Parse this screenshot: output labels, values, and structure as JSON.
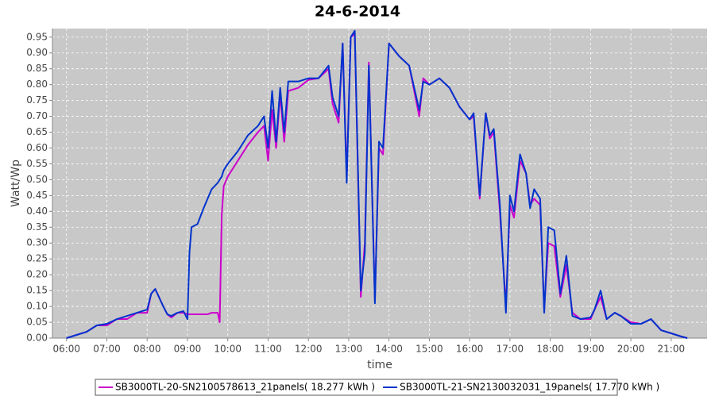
{
  "chart_data": {
    "type": "line",
    "title": "24-6-2014",
    "x_label": "time",
    "y_label": "Watt/Wp",
    "grid": true,
    "legend": "bottom",
    "xlim": [
      5.65,
      21.89
    ],
    "ylim": [
      0,
      0.977
    ],
    "xticks": [
      {
        "value": 6,
        "label": "06:00"
      },
      {
        "value": 7,
        "label": "07:00"
      },
      {
        "value": 8,
        "label": "08:00"
      },
      {
        "value": 9,
        "label": "09:00"
      },
      {
        "value": 10,
        "label": "10:00"
      },
      {
        "value": 11,
        "label": "11:00"
      },
      {
        "value": 12,
        "label": "12:00"
      },
      {
        "value": 13,
        "label": "13:00"
      },
      {
        "value": 14,
        "label": "14:00"
      },
      {
        "value": 15,
        "label": "15:00"
      },
      {
        "value": 16,
        "label": "16:00"
      },
      {
        "value": 17,
        "label": "17:00"
      },
      {
        "value": 18,
        "label": "18:00"
      },
      {
        "value": 19,
        "label": "19:00"
      },
      {
        "value": 20,
        "label": "20:00"
      },
      {
        "value": 21,
        "label": "21:00"
      }
    ],
    "yticks": [
      {
        "value": 0,
        "label": "0.00"
      },
      0.05,
      {
        "value": 0.1,
        "label": "0.10"
      },
      0.15,
      {
        "value": 0.2,
        "label": "0.20"
      },
      0.25,
      {
        "value": 0.3,
        "label": "0.30"
      },
      0.35,
      {
        "value": 0.4,
        "label": "0.40"
      },
      0.45,
      {
        "value": 0.5,
        "label": "0.50"
      },
      0.55,
      {
        "value": 0.6,
        "label": "0.60"
      },
      0.65,
      {
        "value": 0.7,
        "label": "0.70"
      },
      0.75,
      {
        "value": 0.8,
        "label": "0.80"
      },
      0.85,
      {
        "value": 0.9,
        "label": "0.90"
      },
      0.95
    ],
    "x": [
      6.0,
      6.25,
      6.5,
      6.75,
      7.0,
      7.25,
      7.5,
      7.75,
      8.0,
      8.1,
      8.2,
      8.4,
      8.5,
      8.6,
      8.75,
      8.9,
      9.0,
      9.05,
      9.1,
      9.25,
      9.4,
      9.5,
      9.6,
      9.75,
      9.8,
      9.85,
      9.9,
      10.0,
      10.25,
      10.5,
      10.75,
      10.9,
      11.0,
      11.1,
      11.2,
      11.3,
      11.4,
      11.5,
      11.75,
      12.0,
      12.25,
      12.5,
      12.6,
      12.75,
      12.85,
      12.95,
      13.05,
      13.15,
      13.3,
      13.4,
      13.5,
      13.65,
      13.75,
      13.85,
      14.0,
      14.25,
      14.5,
      14.75,
      14.85,
      15.0,
      15.25,
      15.5,
      15.75,
      16.0,
      16.1,
      16.25,
      16.4,
      16.5,
      16.6,
      16.75,
      16.9,
      17.0,
      17.1,
      17.25,
      17.4,
      17.5,
      17.6,
      17.75,
      17.85,
      17.95,
      18.1,
      18.25,
      18.4,
      18.55,
      18.75,
      19.0,
      19.1,
      19.25,
      19.4,
      19.6,
      19.75,
      20.0,
      20.25,
      20.5,
      20.75,
      21.0,
      21.25,
      21.4
    ],
    "series": [
      {
        "name": "SB3000TL-20-SN2100578613_21panels( 18.277 kWh )",
        "color": "#cc00cc",
        "values": [
          0,
          0.01,
          0.02,
          0.04,
          0.04,
          0.06,
          0.06,
          0.08,
          0.08,
          0.14,
          0.155,
          0.1,
          0.075,
          0.065,
          0.08,
          0.08,
          0.075,
          0.075,
          0.075,
          0.075,
          0.075,
          0.075,
          0.08,
          0.08,
          0.05,
          0.39,
          0.48,
          0.51,
          0.56,
          0.61,
          0.65,
          0.67,
          0.56,
          0.72,
          0.6,
          0.77,
          0.62,
          0.78,
          0.79,
          0.815,
          0.82,
          0.85,
          0.74,
          0.68,
          0.93,
          0.51,
          0.95,
          0.96,
          0.13,
          0.3,
          0.87,
          0.12,
          0.6,
          0.58,
          0.93,
          0.89,
          0.86,
          0.7,
          0.82,
          0.8,
          0.82,
          0.79,
          0.73,
          0.69,
          0.7,
          0.44,
          0.71,
          0.63,
          0.65,
          0.4,
          0.1,
          0.42,
          0.38,
          0.56,
          0.52,
          0.42,
          0.44,
          0.42,
          0.09,
          0.3,
          0.29,
          0.13,
          0.23,
          0.08,
          0.06,
          0.06,
          0.09,
          0.13,
          0.06,
          0.08,
          0.07,
          0.05,
          0.045,
          0.06,
          0.025,
          0.015,
          0.005,
          0
        ]
      },
      {
        "name": "SB3000TL-21-SN2130032031_19panels( 17.770 kWh )",
        "color": "#0033cc",
        "values": [
          0,
          0.01,
          0.02,
          0.04,
          0.045,
          0.06,
          0.07,
          0.08,
          0.09,
          0.14,
          0.155,
          0.1,
          0.075,
          0.07,
          0.08,
          0.085,
          0.06,
          0.27,
          0.35,
          0.36,
          0.41,
          0.44,
          0.47,
          0.49,
          0.5,
          0.51,
          0.53,
          0.55,
          0.59,
          0.64,
          0.67,
          0.7,
          0.6,
          0.78,
          0.62,
          0.79,
          0.65,
          0.81,
          0.81,
          0.82,
          0.82,
          0.86,
          0.76,
          0.7,
          0.93,
          0.49,
          0.95,
          0.97,
          0.15,
          0.27,
          0.86,
          0.11,
          0.62,
          0.6,
          0.93,
          0.89,
          0.86,
          0.72,
          0.81,
          0.8,
          0.82,
          0.79,
          0.73,
          0.69,
          0.71,
          0.45,
          0.71,
          0.64,
          0.66,
          0.42,
          0.08,
          0.45,
          0.4,
          0.58,
          0.52,
          0.41,
          0.47,
          0.44,
          0.08,
          0.35,
          0.34,
          0.14,
          0.26,
          0.07,
          0.06,
          0.065,
          0.09,
          0.15,
          0.06,
          0.08,
          0.07,
          0.045,
          0.045,
          0.06,
          0.025,
          0.015,
          0.005,
          0
        ]
      }
    ]
  }
}
